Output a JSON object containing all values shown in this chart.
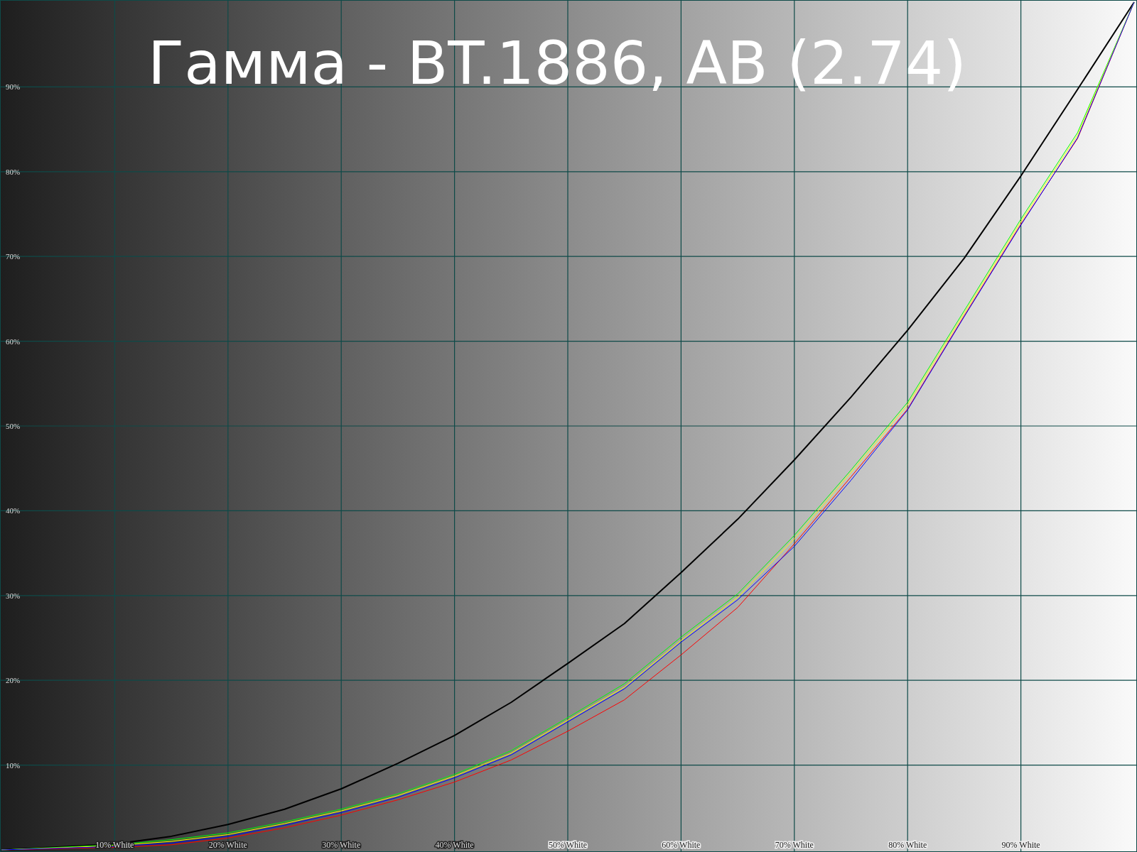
{
  "chart_data": {
    "type": "line",
    "title": "Гамма - BT.1886, АВ (2.74)",
    "x": [
      0,
      10,
      15,
      20,
      25,
      30,
      35,
      40,
      45,
      50,
      55,
      60,
      65,
      70,
      75,
      80,
      85,
      90,
      95,
      100
    ],
    "series": [
      {
        "color": "#000000",
        "values": [
          0,
          0.7,
          1.6,
          3.0,
          4.8,
          7.2,
          10.2,
          13.5,
          17.4,
          22.0,
          26.7,
          32.7,
          39.0,
          46.0,
          53.4,
          61.3,
          69.8,
          79.5,
          89.7,
          100
        ]
      },
      {
        "color": "#ff0000",
        "values": [
          0,
          0.3,
          0.6,
          1.4,
          2.6,
          4.1,
          5.9,
          8.0,
          10.6,
          14.0,
          17.7,
          23.0,
          28.6,
          36.1,
          44.0,
          52.0,
          63.0,
          73.8,
          83.9,
          100
        ]
      },
      {
        "color": "#00ff00",
        "values": [
          0,
          0.6,
          1.2,
          2.0,
          3.3,
          4.8,
          6.6,
          8.9,
          11.7,
          15.6,
          19.6,
          25.1,
          30.2,
          37.1,
          44.8,
          52.8,
          63.6,
          74.4,
          84.6,
          100
        ]
      },
      {
        "color": "#ffff00",
        "values": [
          0,
          0.5,
          1.0,
          1.8,
          3.1,
          4.6,
          6.4,
          8.7,
          11.4,
          15.3,
          19.2,
          24.7,
          29.8,
          36.7,
          44.5,
          52.5,
          63.3,
          74.1,
          84.3,
          100
        ]
      },
      {
        "color": "#0000ff",
        "values": [
          0,
          0.4,
          0.8,
          1.6,
          2.9,
          4.4,
          6.2,
          8.5,
          11.2,
          15.1,
          19.0,
          24.5,
          29.5,
          35.8,
          43.6,
          51.9,
          62.9,
          73.7,
          84.0,
          100
        ]
      }
    ],
    "xlim": [
      0,
      100
    ],
    "ylim": [
      0,
      100
    ],
    "xticks": [
      {
        "value": 10,
        "label": "10% White"
      },
      {
        "value": 20,
        "label": "20% White"
      },
      {
        "value": 30,
        "label": "30% White"
      },
      {
        "value": 40,
        "label": "40% White"
      },
      {
        "value": 50,
        "label": "50% White"
      },
      {
        "value": 60,
        "label": "60% White"
      },
      {
        "value": 70,
        "label": "70% White"
      },
      {
        "value": 80,
        "label": "80% White"
      },
      {
        "value": 90,
        "label": "90% White"
      }
    ],
    "yticks": [
      {
        "value": 10,
        "label": "10%"
      },
      {
        "value": 20,
        "label": "20%"
      },
      {
        "value": 30,
        "label": "30%"
      },
      {
        "value": 40,
        "label": "40%"
      },
      {
        "value": 50,
        "label": "50%"
      },
      {
        "value": 60,
        "label": "60%"
      },
      {
        "value": 70,
        "label": "70%"
      },
      {
        "value": 80,
        "label": "80%"
      },
      {
        "value": 90,
        "label": "90%"
      }
    ],
    "grid": true,
    "marker": "none",
    "line_style": "solid"
  }
}
